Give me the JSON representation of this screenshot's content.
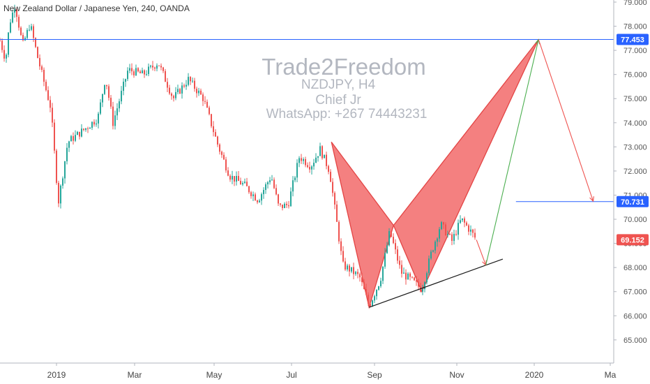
{
  "chart_data": {
    "type": "candlestick",
    "symbol_title": "New Zealand Dollar / Japanese Yen, 240, OANDA",
    "watermark": {
      "title": "Trade2Freedom",
      "lines": [
        "NZDJPY, H4",
        "Chief Jr",
        "WhatsApp: +267 74443231"
      ]
    },
    "y_ticks": [
      "79.000",
      "78.000",
      "77.000",
      "76.000",
      "75.000",
      "74.000",
      "73.000",
      "72.000",
      "71.000",
      "70.000",
      "69.000",
      "68.000",
      "67.000",
      "66.000",
      "65.000"
    ],
    "x_ticks": [
      "2019",
      "Mar",
      "May",
      "Jul",
      "Sep",
      "Nov",
      "2020",
      "Ma"
    ],
    "ylim": [
      64.1,
      79.2
    ],
    "price_path": [
      {
        "t": 0.0,
        "p": 77.4
      },
      {
        "t": 0.3,
        "p": 76.6
      },
      {
        "t": 0.5,
        "p": 78.1
      },
      {
        "t": 0.8,
        "p": 78.9
      },
      {
        "t": 1.2,
        "p": 77.2
      },
      {
        "t": 1.6,
        "p": 78.1
      },
      {
        "t": 2.0,
        "p": 76.7
      },
      {
        "t": 2.7,
        "p": 74.6
      },
      {
        "t": 3.1,
        "p": 70.7
      },
      {
        "t": 3.6,
        "p": 73.2
      },
      {
        "t": 4.6,
        "p": 73.8
      },
      {
        "t": 5.2,
        "p": 74.2
      },
      {
        "t": 5.6,
        "p": 75.9
      },
      {
        "t": 6.0,
        "p": 74.0
      },
      {
        "t": 6.8,
        "p": 76.2
      },
      {
        "t": 7.6,
        "p": 76.0
      },
      {
        "t": 8.4,
        "p": 76.5
      },
      {
        "t": 9.2,
        "p": 75.0
      },
      {
        "t": 10.0,
        "p": 75.8
      },
      {
        "t": 10.8,
        "p": 75.0
      },
      {
        "t": 11.6,
        "p": 73.0
      },
      {
        "t": 12.2,
        "p": 71.8
      },
      {
        "t": 13.0,
        "p": 71.4
      },
      {
        "t": 13.7,
        "p": 70.8
      },
      {
        "t": 14.4,
        "p": 71.8
      },
      {
        "t": 14.8,
        "p": 70.5
      },
      {
        "t": 15.3,
        "p": 70.6
      },
      {
        "t": 15.9,
        "p": 72.6
      },
      {
        "t": 16.5,
        "p": 72.2
      },
      {
        "t": 17.0,
        "p": 72.9
      },
      {
        "t": 17.5,
        "p": 72.0
      },
      {
        "t": 18.2,
        "p": 68.1
      },
      {
        "t": 18.6,
        "p": 67.9
      },
      {
        "t": 19.1,
        "p": 67.6
      },
      {
        "t": 19.6,
        "p": 66.4
      },
      {
        "t": 20.2,
        "p": 67.5
      },
      {
        "t": 20.7,
        "p": 69.5
      },
      {
        "t": 21.3,
        "p": 67.8
      },
      {
        "t": 21.8,
        "p": 67.5
      },
      {
        "t": 22.4,
        "p": 67.1
      },
      {
        "t": 22.9,
        "p": 68.6
      },
      {
        "t": 23.4,
        "p": 69.8
      },
      {
        "t": 24.0,
        "p": 69.1
      },
      {
        "t": 24.5,
        "p": 70.0
      },
      {
        "t": 25.0,
        "p": 69.5
      },
      {
        "t": 25.3,
        "p": 69.15
      }
    ],
    "harmonic_pattern": {
      "points": [
        [
          17.6,
          73.2
        ],
        [
          19.6,
          66.35
        ],
        [
          20.9,
          69.75
        ],
        [
          22.4,
          67.0
        ],
        [
          28.6,
          77.45
        ]
      ],
      "fill_color": "#f26a6a",
      "stroke_color": "#e34444"
    },
    "trendline": {
      "from": [
        19.6,
        66.35
      ],
      "to": [
        26.7,
        68.35
      ],
      "color": "#1a1a1a"
    },
    "projection": {
      "segments": [
        {
          "from": [
            25.3,
            69.15
          ],
          "to": [
            25.8,
            68.1
          ],
          "color": "#ef5350"
        },
        {
          "from": [
            25.8,
            68.1
          ],
          "to": [
            28.6,
            77.45
          ],
          "color": "#4caf50"
        },
        {
          "from": [
            28.6,
            77.45
          ],
          "to": [
            31.5,
            70.75
          ],
          "color": "#ef5350"
        }
      ]
    },
    "horizontal_lines": [
      {
        "price": 77.453,
        "label": "77.453",
        "from_t": 0.0,
        "color": "#2962ff"
      },
      {
        "price": 70.731,
        "label": "70.731",
        "from_t": 27.4,
        "color": "#2962ff"
      }
    ],
    "last_price": {
      "price": 69.152,
      "label": "69.152",
      "color": "#ef5350"
    },
    "grid": false
  }
}
